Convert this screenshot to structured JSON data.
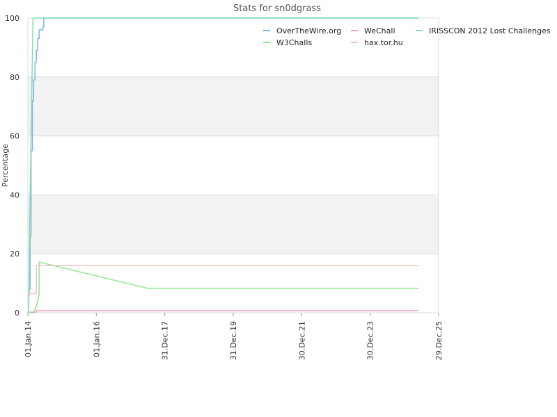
{
  "chart_data": {
    "type": "line",
    "title": "Stats for sn0dgrass",
    "ylabel": "Percentage",
    "xlabel": "",
    "ylim": [
      0,
      100
    ],
    "yticks": [
      0,
      20,
      40,
      60,
      80,
      100
    ],
    "xlim": [
      "2014-01-01",
      "2025-12-29"
    ],
    "xticks": [
      {
        "date": "2014-01-01",
        "label": "01.Jan.14"
      },
      {
        "date": "2016-01-01",
        "label": "01.Jan.16"
      },
      {
        "date": "2017-12-31",
        "label": "31.Dec.17"
      },
      {
        "date": "2019-12-31",
        "label": "31.Dec.19"
      },
      {
        "date": "2021-12-30",
        "label": "30.Dec.21"
      },
      {
        "date": "2023-12-30",
        "label": "30.Dec.23"
      },
      {
        "date": "2025-12-29",
        "label": "29.Dec.25"
      }
    ],
    "grid": true,
    "alternate_bands": true,
    "legend_position": "top-right",
    "series": [
      {
        "name": "OverTheWire.org",
        "color": "#7fb2e0",
        "points": [
          [
            "2014-01-06",
            6
          ],
          [
            "2014-01-16",
            6
          ],
          [
            "2014-01-16",
            8
          ],
          [
            "2014-01-25",
            8
          ],
          [
            "2014-01-25",
            26
          ],
          [
            "2014-02-04",
            26
          ],
          [
            "2014-02-04",
            55
          ],
          [
            "2014-02-18",
            55
          ],
          [
            "2014-02-18",
            72
          ],
          [
            "2014-03-04",
            72
          ],
          [
            "2014-03-04",
            79
          ],
          [
            "2014-03-18",
            79
          ],
          [
            "2014-03-18",
            85
          ],
          [
            "2014-04-01",
            85
          ],
          [
            "2014-04-01",
            89
          ],
          [
            "2014-04-15",
            89
          ],
          [
            "2014-04-15",
            93
          ],
          [
            "2014-05-01",
            93
          ],
          [
            "2014-05-01",
            96
          ],
          [
            "2014-06-10",
            96
          ],
          [
            "2014-06-10",
            97
          ],
          [
            "2014-06-20",
            97
          ],
          [
            "2014-06-20",
            100
          ],
          [
            "2025-05-31",
            100
          ]
        ]
      },
      {
        "name": "WeChall",
        "color": "#f2a0b8",
        "points": [
          [
            "2014-01-06",
            0.2
          ],
          [
            "2014-04-01",
            0.2
          ],
          [
            "2014-04-01",
            0.7
          ],
          [
            "2025-05-31",
            0.7
          ]
        ]
      },
      {
        "name": "IRISSCON 2012 Lost Challenges",
        "color": "#7fe0b0",
        "points": [
          [
            "2014-01-10",
            0
          ],
          [
            "2014-01-20",
            30
          ],
          [
            "2014-02-25",
            100
          ],
          [
            "2014-05-15",
            100
          ],
          [
            "2025-05-31",
            100
          ]
        ]
      },
      {
        "name": "W3Challs",
        "color": "#8ee68e",
        "points": [
          [
            "2014-01-06",
            0
          ],
          [
            "2014-03-01",
            0
          ],
          [
            "2014-04-01",
            2
          ],
          [
            "2014-05-01",
            6
          ],
          [
            "2014-05-01",
            17.2
          ],
          [
            "2017-07-01",
            8.3
          ],
          [
            "2025-05-31",
            8.3
          ]
        ]
      },
      {
        "name": "hax.tor.hu",
        "color": "#f5c0c0",
        "points": [
          [
            "2014-01-06",
            6.5
          ],
          [
            "2014-04-01",
            6.5
          ],
          [
            "2014-04-01",
            16
          ],
          [
            "2025-05-31",
            16
          ]
        ]
      }
    ],
    "legend_layout": [
      [
        "OverTheWire.org",
        "WeChall",
        "IRISSCON 2012 Lost Challenges"
      ],
      [
        "W3Challs",
        "hax.tor.hu"
      ]
    ]
  }
}
